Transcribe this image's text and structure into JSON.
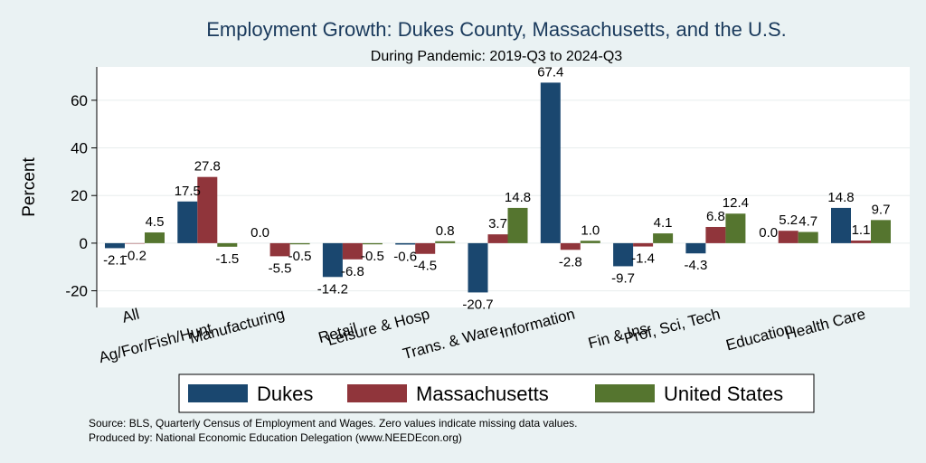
{
  "chart_data": {
    "type": "bar",
    "title": "Employment Growth: Dukes County, Massachusetts, and the U.S.",
    "subtitle": "During Pandemic: 2019-Q3 to 2024-Q3",
    "xlabel": "",
    "ylabel": "Percent",
    "ylim": [
      -27,
      74
    ],
    "yticks": [
      -20,
      0,
      20,
      40,
      60
    ],
    "ytick_labels": [
      "-20",
      "0",
      "20",
      "40",
      "60"
    ],
    "grid": true,
    "legend_position": "bottom",
    "categories": [
      "All",
      "Ag/For/Fish/Hunt",
      "Manufacturing",
      "Retail",
      "Leisure & Hosp",
      "Trans. & Ware.",
      "Information",
      "Fin & Ins",
      "Prof, Sci, Tech",
      "Education",
      "Health Care"
    ],
    "series": [
      {
        "name": "Dukes",
        "color": "#1a476f",
        "values": [
          -2.1,
          17.5,
          0.0,
          -14.2,
          -0.6,
          -20.7,
          67.4,
          -9.7,
          -4.3,
          0.0,
          14.8
        ],
        "labels": [
          "-2.1",
          "17.5",
          "0.0",
          "-14.2",
          "-0.6",
          "-20.7",
          "67.4",
          "-9.7",
          "-4.3",
          "0.0",
          "14.8"
        ]
      },
      {
        "name": "Massachusetts",
        "color": "#90353b",
        "values": [
          -0.2,
          27.8,
          -5.5,
          -6.8,
          -4.5,
          3.7,
          -2.8,
          -1.4,
          6.8,
          5.2,
          1.1
        ],
        "labels": [
          "-0.2",
          "27.8",
          "-5.5",
          "-6.8",
          "-4.5",
          "3.7",
          "-2.8",
          "-1.4",
          "6.8",
          "5.2",
          "1.1"
        ]
      },
      {
        "name": "United States",
        "color": "#55752f",
        "values": [
          4.5,
          -1.5,
          -0.5,
          -0.5,
          0.8,
          14.8,
          1.0,
          4.1,
          12.4,
          4.7,
          9.7
        ],
        "labels": [
          "4.5",
          "-1.5",
          "-0.5",
          "-0.5",
          "0.8",
          "14.8",
          "1.0",
          "4.1",
          "12.4",
          "4.7",
          "9.7"
        ]
      }
    ],
    "notes": [
      "Source: BLS, Quarterly Census of Employment and Wages. Zero values indicate missing data values.",
      "Produced by: National Economic Education Delegation (www.NEEDEcon.org)"
    ]
  }
}
